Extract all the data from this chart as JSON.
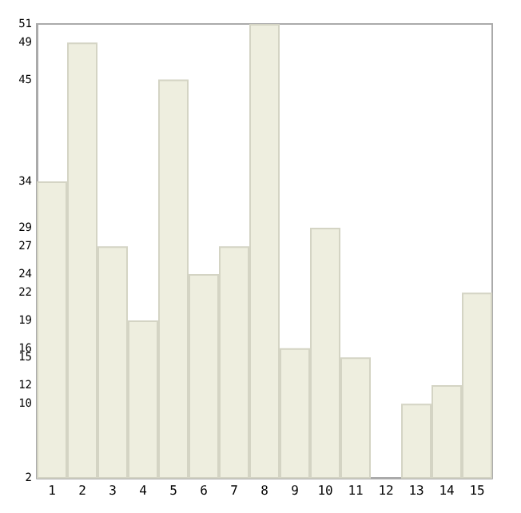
{
  "chart_data": {
    "type": "bar",
    "categories": [
      "1",
      "2",
      "3",
      "4",
      "5",
      "6",
      "7",
      "8",
      "9",
      "10",
      "11",
      "12",
      "13",
      "14",
      "15"
    ],
    "values": [
      34,
      49,
      27,
      19,
      45,
      24,
      27,
      51,
      16,
      29,
      15,
      2,
      10,
      12,
      22
    ],
    "color": "#eeeedf",
    "ylim": [
      2,
      51
    ],
    "yticks": [
      2,
      10,
      12,
      15,
      16,
      19,
      22,
      24,
      27,
      29,
      34,
      45,
      49,
      51
    ],
    "grid": false
  }
}
